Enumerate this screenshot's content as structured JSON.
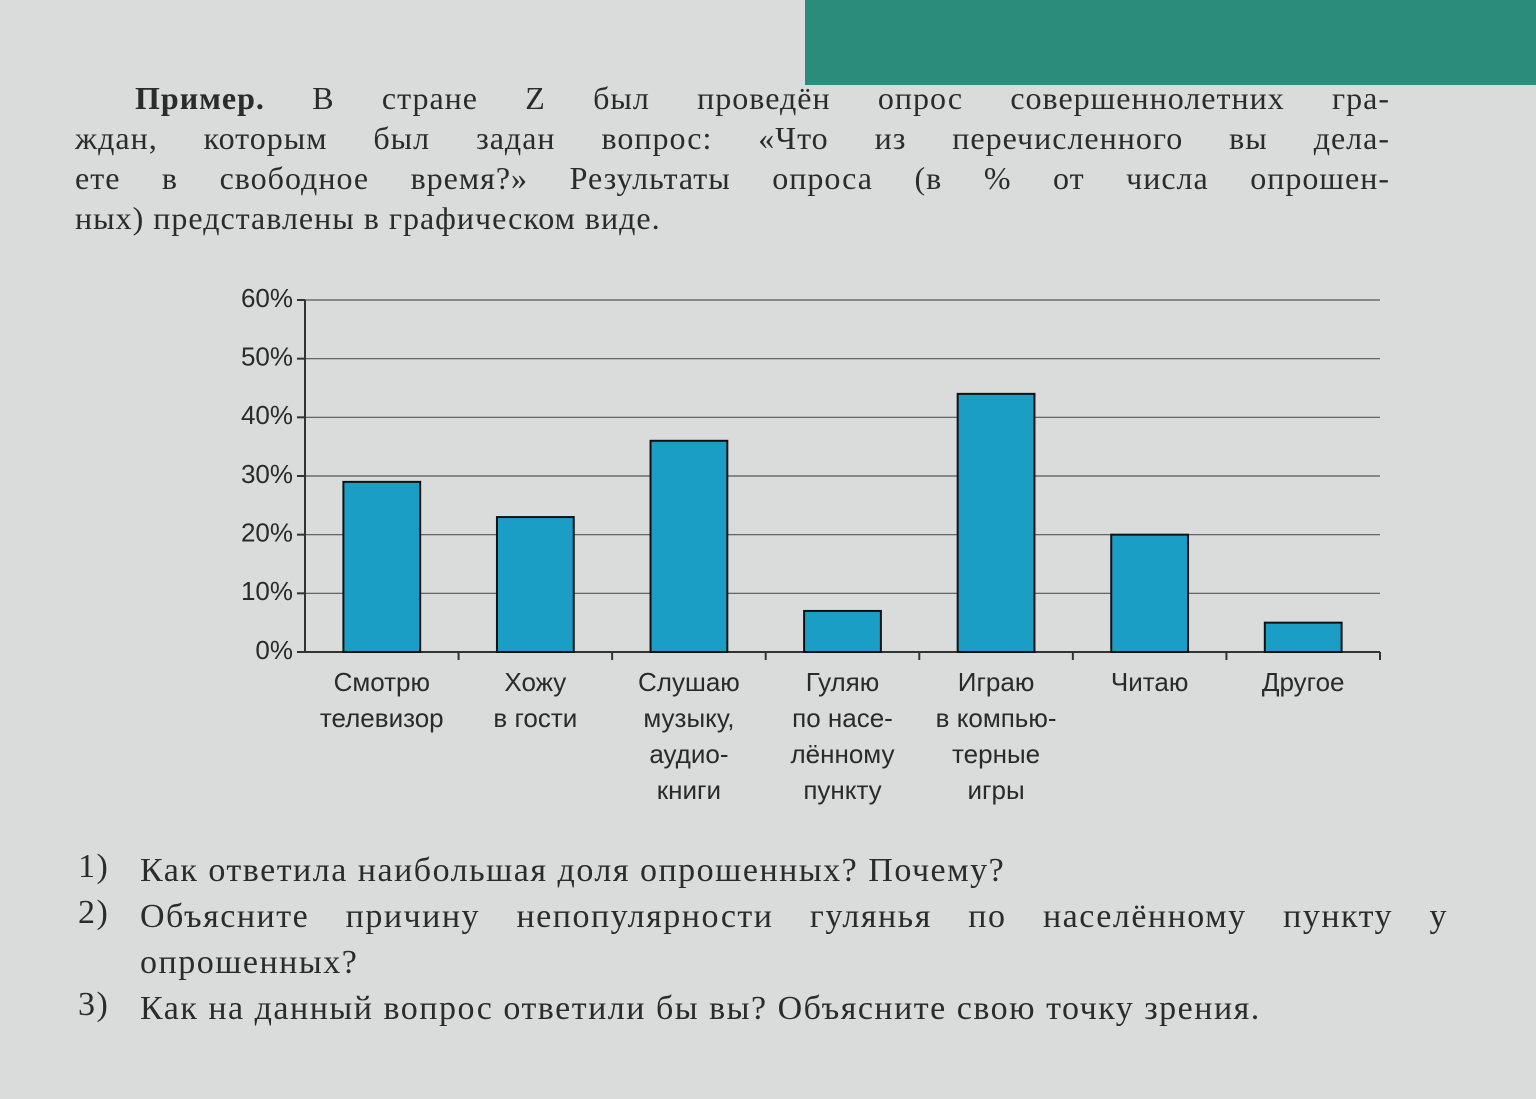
{
  "paragraph": {
    "lead": "Пример.",
    "lines": [
      "В стране Z был проведён опрос совершеннолетних гра-",
      "ждан, которым был задан вопрос: «Что из перечисленного вы дела-",
      "ете в свободное время?» Результаты опроса (в % от числа опрошен-",
      "ных) представлены в графическом виде."
    ]
  },
  "chart_data": {
    "type": "bar",
    "categories": [
      [
        "Смотрю",
        "телевизор"
      ],
      [
        "Хожу",
        "в гости"
      ],
      [
        "Слушаю",
        "музыку,",
        "аудио-",
        "книги"
      ],
      [
        "Гуляю",
        "по насе-",
        "лённому",
        "пункту"
      ],
      [
        "Играю",
        "в компью-",
        "терные",
        "игры"
      ],
      [
        "Читаю"
      ],
      [
        "Другое"
      ]
    ],
    "values": [
      29,
      23,
      36,
      7,
      44,
      20,
      5
    ],
    "color": "#1b9ec6",
    "ylim": [
      0,
      60
    ],
    "yticks": [
      {
        "value": 0,
        "label": "0%"
      },
      {
        "value": 10,
        "label": "10%"
      },
      {
        "value": 20,
        "label": "20%"
      },
      {
        "value": 30,
        "label": "30%"
      },
      {
        "value": 40,
        "label": "40%"
      },
      {
        "value": 50,
        "label": "50%"
      },
      {
        "value": 60,
        "label": "60%"
      }
    ],
    "grid": true
  },
  "questions": [
    {
      "number": "1)",
      "text": "Как ответила наибольшая доля опрошенных? Почему?"
    },
    {
      "number": "2)",
      "text": "Объясните причину непопулярности гулянья по населённому пункту у опрошенных?"
    },
    {
      "number": "3)",
      "text": "Как на данный вопрос ответили бы вы? Объясните свою точку зрения."
    }
  ]
}
